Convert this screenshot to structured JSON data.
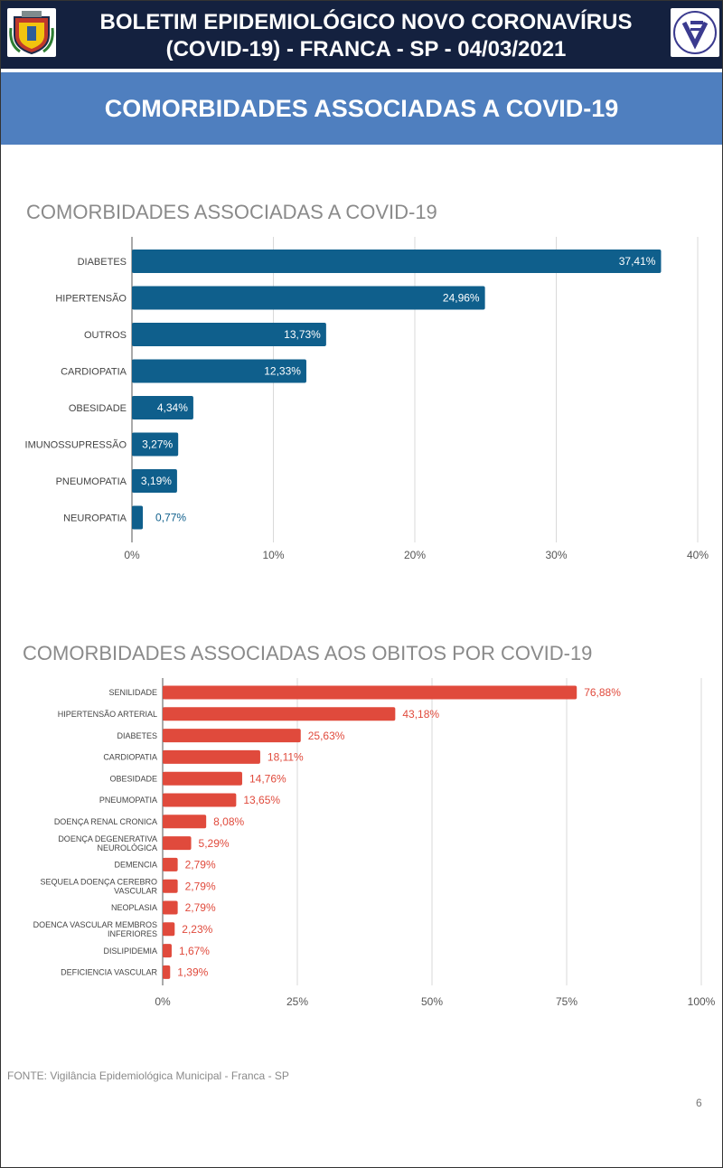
{
  "header": {
    "line1": "BOLETIM EPIDEMIOLÓGICO NOVO CORONAVÍRUS",
    "line2": "(COVID-19) - FRANCA - SP - 04/03/2021"
  },
  "banner": {
    "title": "COMORBIDADES ASSOCIADAS A COVID-19"
  },
  "chart_data": [
    {
      "type": "bar",
      "orientation": "horizontal",
      "title": "COMORBIDADES ASSOCIADAS A COVID-19",
      "categories": [
        "DIABETES",
        "HIPERTENSÃO",
        "OUTROS",
        "CARDIOPATIA",
        "OBESIDADE",
        "IMUNOSSUPRESSÃO",
        "PNEUMOPATIA",
        "NEUROPATIA"
      ],
      "values": [
        37.41,
        24.96,
        13.73,
        12.33,
        4.34,
        3.27,
        3.19,
        0.77
      ],
      "value_labels": [
        "37,41%",
        "24,96%",
        "13,73%",
        "12,33%",
        "4,34%",
        "3,27%",
        "3,19%",
        "0,77%"
      ],
      "xlim": [
        0,
        40
      ],
      "xticks": [
        0,
        10,
        20,
        30,
        40
      ],
      "xtick_labels": [
        "0%",
        "10%",
        "20%",
        "30%",
        "40%"
      ],
      "grid": true,
      "color": "#0f5f8c"
    },
    {
      "type": "bar",
      "orientation": "horizontal",
      "title": "COMORBIDADES ASSOCIADAS AOS OBITOS POR COVID-19",
      "categories": [
        "SENILIDADE",
        "HIPERTENSÃO ARTERIAL",
        "DIABETES",
        "CARDIOPATIA",
        "OBESIDADE",
        "PNEUMOPATIA",
        "DOENÇA RENAL CRONICA",
        "DOENÇA DEGENERATIVA NEUROLÓGICA",
        "DEMENCIA",
        "SEQUELA DOENÇA CEREBRO VASCULAR",
        "NEOPLASIA",
        "DOENCA VASCULAR MEMBROS INFERIORES",
        "DISLIPIDEMIA",
        "DEFICIENCIA VASCULAR"
      ],
      "category_lines": [
        [
          "SENILIDADE"
        ],
        [
          "HIPERTENSÃO ARTERIAL"
        ],
        [
          "DIABETES"
        ],
        [
          "CARDIOPATIA"
        ],
        [
          "OBESIDADE"
        ],
        [
          "PNEUMOPATIA"
        ],
        [
          "DOENÇA RENAL CRONICA"
        ],
        [
          "DOENÇA DEGENERATIVA",
          "NEUROLÓGICA"
        ],
        [
          "DEMENCIA"
        ],
        [
          "SEQUELA DOENÇA CEREBRO",
          "VASCULAR"
        ],
        [
          "NEOPLASIA"
        ],
        [
          "DOENCA VASCULAR MEMBROS",
          "INFERIORES"
        ],
        [
          "DISLIPIDEMIA"
        ],
        [
          "DEFICIENCIA VASCULAR"
        ]
      ],
      "values": [
        76.88,
        43.18,
        25.63,
        18.11,
        14.76,
        13.65,
        8.08,
        5.29,
        2.79,
        2.79,
        2.79,
        2.23,
        1.67,
        1.39
      ],
      "value_labels": [
        "76,88%",
        "43,18%",
        "25,63%",
        "18,11%",
        "14,76%",
        "13,65%",
        "8,08%",
        "5,29%",
        "2,79%",
        "2,79%",
        "2,79%",
        "2,23%",
        "1,67%",
        "1,39%"
      ],
      "xlim": [
        0,
        100
      ],
      "xticks": [
        0,
        25,
        50,
        75,
        100
      ],
      "xtick_labels": [
        "0%",
        "25%",
        "50%",
        "75%",
        "100%"
      ],
      "grid": true,
      "color": "#e04a3c"
    }
  ],
  "footer": {
    "source": "FONTE: Vigilância Epidemiológica Municipal - Franca - SP",
    "page": "6"
  }
}
